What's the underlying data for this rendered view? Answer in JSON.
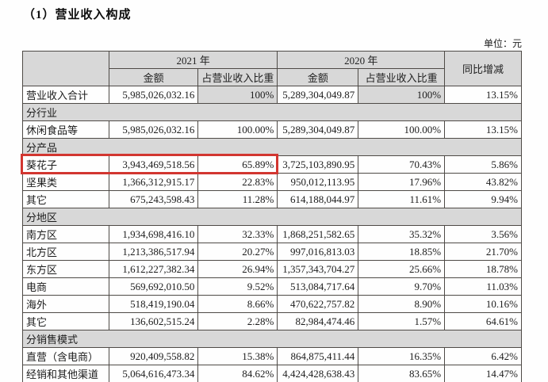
{
  "title": "（1）营业收入构成",
  "unit_label": "单位：元",
  "table": {
    "header": {
      "year_2021": "2021 年",
      "year_2020": "2020 年",
      "yoy": "同比增减",
      "amount_2021": "金额",
      "proportion_2021": "占营业收入比重",
      "amount_2020": "金额",
      "proportion_2020": "占营业收入比重"
    },
    "rows": [
      {
        "type": "data",
        "label": "营业收入合计",
        "a2021": "5,985,026,032.16",
        "p2021": "100%",
        "a2020": "5,289,304,049.87",
        "p2020": "100%",
        "yoy": "13.15%",
        "shade_pct": true
      },
      {
        "type": "section",
        "label": "分行业"
      },
      {
        "type": "data",
        "label": "休闲食品等",
        "a2021": "5,985,026,032.16",
        "p2021": "100.00%",
        "a2020": "5,289,304,049.87",
        "p2020": "100.00%",
        "yoy": "13.15%"
      },
      {
        "type": "section",
        "label": "分产品"
      },
      {
        "type": "data",
        "label": "葵花子",
        "a2021": "3,943,469,518.56",
        "p2021": "65.89%",
        "a2020": "3,725,103,890.95",
        "p2020": "70.43%",
        "yoy": "5.86%",
        "highlight": true
      },
      {
        "type": "data",
        "label": "坚果类",
        "a2021": "1,366,312,915.17",
        "p2021": "22.83%",
        "a2020": "950,012,113.95",
        "p2020": "17.96%",
        "yoy": "43.82%"
      },
      {
        "type": "data",
        "label": "其它",
        "a2021": "675,243,598.43",
        "p2021": "11.28%",
        "a2020": "614,188,044.97",
        "p2020": "11.61%",
        "yoy": "9.94%"
      },
      {
        "type": "section",
        "label": "分地区"
      },
      {
        "type": "data",
        "label": "南方区",
        "a2021": "1,934,698,416.10",
        "p2021": "32.33%",
        "a2020": "1,868,251,582.65",
        "p2020": "35.32%",
        "yoy": "3.56%"
      },
      {
        "type": "data",
        "label": "北方区",
        "a2021": "1,213,386,517.94",
        "p2021": "20.27%",
        "a2020": "997,016,813.03",
        "p2020": "18.85%",
        "yoy": "21.70%"
      },
      {
        "type": "data",
        "label": "东方区",
        "a2021": "1,612,227,382.34",
        "p2021": "26.94%",
        "a2020": "1,357,343,704.27",
        "p2020": "25.66%",
        "yoy": "18.78%"
      },
      {
        "type": "data",
        "label": "电商",
        "a2021": "569,692,010.50",
        "p2021": "9.52%",
        "a2020": "513,084,717.64",
        "p2020": "9.70%",
        "yoy": "11.03%"
      },
      {
        "type": "data",
        "label": "海外",
        "a2021": "518,419,190.04",
        "p2021": "8.66%",
        "a2020": "470,622,757.82",
        "p2020": "8.90%",
        "yoy": "10.16%"
      },
      {
        "type": "data",
        "label": "其它",
        "a2021": "136,602,515.24",
        "p2021": "2.28%",
        "a2020": "82,984,474.46",
        "p2020": "1.57%",
        "yoy": "64.61%"
      },
      {
        "type": "section",
        "label": "分销售模式"
      },
      {
        "type": "data",
        "label": "直营（含电商）",
        "a2021": "920,409,558.82",
        "p2021": "15.38%",
        "a2020": "864,875,411.44",
        "p2020": "16.35%",
        "yoy": "6.42%"
      },
      {
        "type": "data",
        "label": "经销和其他渠道",
        "a2021": "5,064,616,473.34",
        "p2021": "84.62%",
        "a2020": "4,424,428,638.43",
        "p2020": "83.65%",
        "yoy": "14.47%"
      }
    ]
  },
  "colors": {
    "header_bg": "#d8d8d8",
    "section_bg": "#d8d8d8",
    "border": "#4e4a46",
    "highlight_border": "#d23630",
    "text": "#1c1c1c"
  }
}
